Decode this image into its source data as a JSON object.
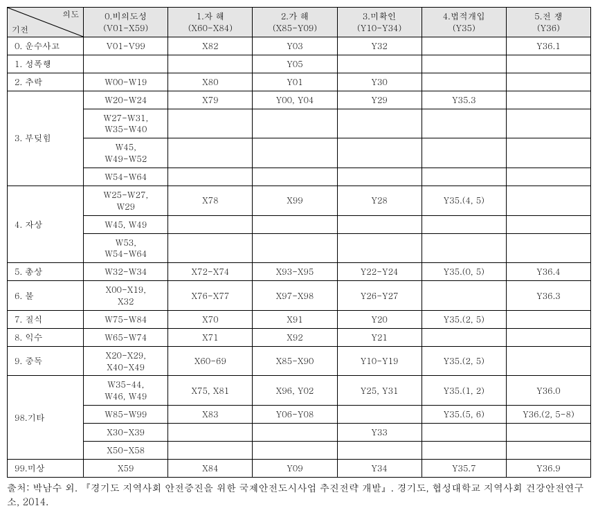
{
  "header": {
    "diag_top": "의도",
    "diag_bottom": "기전",
    "cols": [
      {
        "title": "0.비의도성",
        "sub": "(V01-X59)"
      },
      {
        "title": "1.자 해",
        "sub": "(X60-X84)"
      },
      {
        "title": "2.가 해",
        "sub": "(X85-Y09)"
      },
      {
        "title": "3.미확인",
        "sub": "(Y10-Y34)"
      },
      {
        "title": "4.법적개입",
        "sub": "(Y35)"
      },
      {
        "title": "5.전 쟁",
        "sub": "(Y36)"
      }
    ]
  },
  "rows": [
    {
      "label": "0. 운수사고",
      "cells": [
        "V01-V99",
        "X82",
        "Y03",
        "Y32",
        "",
        "Y36.1"
      ]
    },
    {
      "label": "1. 성폭행",
      "cells": [
        "",
        "",
        "Y05",
        "",
        "",
        ""
      ]
    },
    {
      "label": "2. 추락",
      "cells": [
        "W00-W19",
        "X80",
        "Y01",
        "Y30",
        "",
        ""
      ]
    },
    {
      "label_rowspan": 4,
      "label": "3. 부딪힘",
      "multi": [
        [
          "W20-W24",
          "X79",
          "Y00, Y04",
          "Y29",
          "Y35.3",
          ""
        ],
        [
          "W27-W31,\nW35-W40",
          "",
          "",
          "",
          "",
          ""
        ],
        [
          "W45,\nW49-W52",
          "",
          "",
          "",
          "",
          ""
        ],
        [
          "W54-W64",
          "",
          "",
          "",
          "",
          ""
        ]
      ]
    },
    {
      "label_rowspan": 3,
      "label": "4. 자상",
      "multi": [
        [
          "W25-W27,\nW29",
          "X78",
          "X99",
          "Y28",
          "Y35.(4, 5)",
          ""
        ],
        [
          "W45, W49",
          "",
          "",
          "",
          "",
          ""
        ],
        [
          "W53,\nW54-W64",
          "",
          "",
          "",
          "",
          ""
        ]
      ]
    },
    {
      "label": "5. 총상",
      "cells": [
        "W32-W34",
        "X72-X74",
        "X93-X95",
        "Y22-Y24",
        "Y35.(0, 5)",
        "Y36.4"
      ]
    },
    {
      "label": "6. 불",
      "cells": [
        "X00-X19,\nX32",
        "X76-X77",
        "X97-X98",
        "Y26-Y27",
        "",
        "Y36.3"
      ]
    },
    {
      "label": "7. 질식",
      "cells": [
        "W75-W84",
        "X70",
        "X91",
        "Y20",
        "Y35.(2, 5)",
        ""
      ]
    },
    {
      "label": "8. 익수",
      "cells": [
        "W65-W74",
        "X71",
        "X92",
        "Y21",
        "",
        ""
      ]
    },
    {
      "label": "9. 중독",
      "cells": [
        "X20-X29,\nX40-X49",
        "X60-69",
        "X85-X90",
        "Y10-Y19",
        "Y35.(2, 5)",
        ""
      ]
    },
    {
      "label_rowspan": 4,
      "label": "98.기타",
      "multi": [
        [
          "W35-44,\nW46, W49",
          "X75, X81",
          "X96, Y02",
          "Y25, Y31",
          "Y35.(1, 2)",
          "Y36.0"
        ],
        [
          "W85-W99",
          "X83",
          "Y06-Y08",
          "",
          "Y35.(5, 6)",
          "Y36.(2, 5-8)"
        ],
        [
          "X30-X39",
          "",
          "",
          "Y33",
          "",
          ""
        ],
        [
          "X50-X58",
          "",
          "",
          "",
          "",
          ""
        ]
      ]
    },
    {
      "label": "99.미상",
      "cells": [
        "X59",
        "X84",
        "Y09",
        "Y34",
        "Y35.7",
        "Y36.9"
      ]
    }
  ],
  "source": "출처: 박남수 외. 『경기도 지역사회 안전증진을 위한 국제안전도시사업 추진전략 개발』. 경기도, 협성대학교 지역사회 건강안전연구소, 2014."
}
